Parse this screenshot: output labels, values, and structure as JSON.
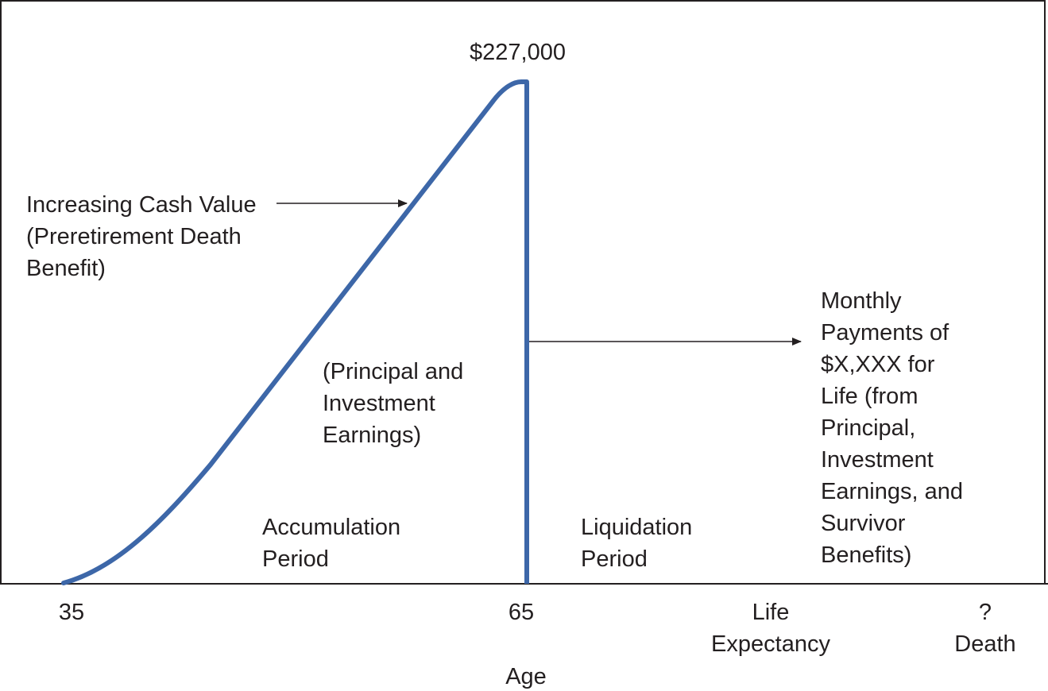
{
  "peak_value": "$227,000",
  "annotations": {
    "cash_value": "Increasing Cash Value\n(Preretirement Death\nBenefit)",
    "principal": "(Principal and\nInvestment\nEarnings)",
    "monthly": "Monthly\nPayments of\n$X,XXX for\nLife (from\nPrincipal,\nInvestment\nEarnings, and\nSurvivor\nBenefits)"
  },
  "periods": {
    "accumulation": "Accumulation\nPeriod",
    "liquidation": "Liquidation\nPeriod"
  },
  "axis": {
    "title": "Age",
    "ticks": {
      "t35": "35",
      "t65": "65",
      "life": "Life\nExpectancy",
      "death": "?\nDeath"
    }
  },
  "colors": {
    "curve": "#3d67a8",
    "ink": "#231f20"
  }
}
